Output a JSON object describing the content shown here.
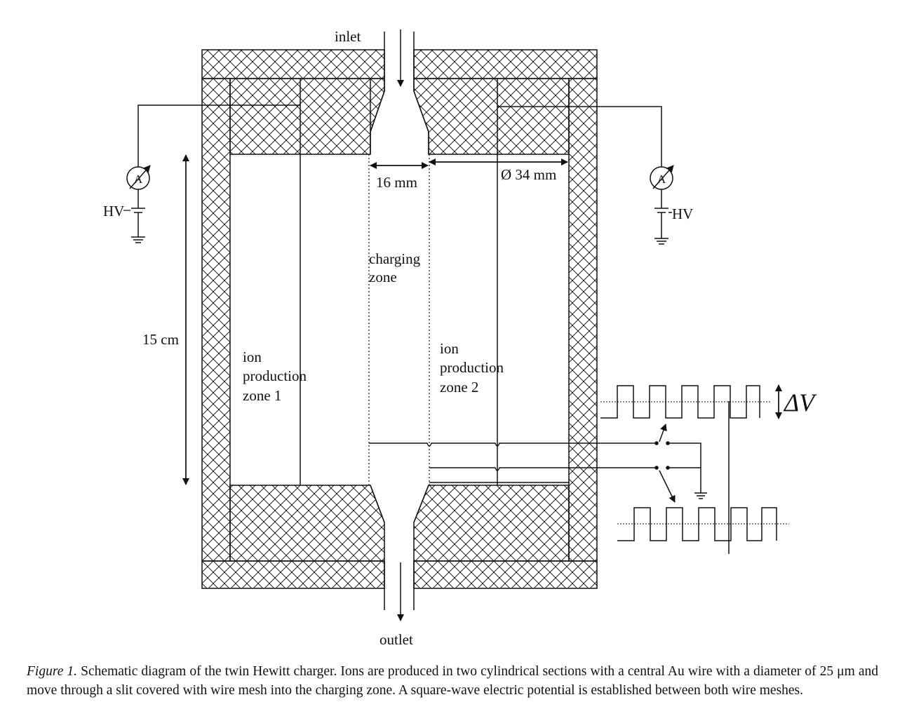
{
  "labels": {
    "inlet": "inlet",
    "outlet": "outlet",
    "slit_width": "16 mm",
    "diameter": "Ø 34 mm",
    "length": "15 cm",
    "charging_1": "charging",
    "charging_2": "zone",
    "zone1_1": "ion",
    "zone1_2": "production",
    "zone1_3": "zone  1",
    "zone2_1": "ion",
    "zone2_2": "production",
    "zone2_3": "zone  2",
    "hv_left": "HV",
    "hv_right": "HV",
    "ammeter": "A",
    "delta_v": "ΔV"
  },
  "caption": {
    "figure_label": "Figure 1.",
    "text": "Schematic diagram of the twin Hewitt charger. Ions are produced in two cylindrical sections with a central Au wire with a diameter of 25 μm and move through a slit covered with wire mesh into the charging zone. A square-wave electric potential is established between both wire meshes."
  }
}
